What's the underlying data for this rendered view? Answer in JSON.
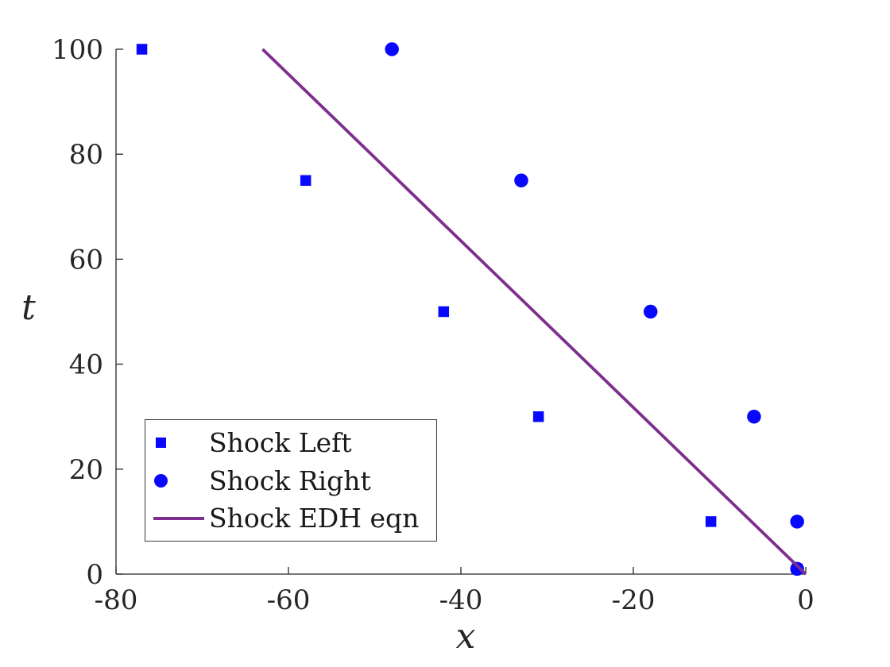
{
  "figure": {
    "background": "#ffffff",
    "axis_color": "#262626",
    "text_color": "#1a1a1a"
  },
  "chart_data": {
    "type": "scatter",
    "title": "",
    "xlabel": "x",
    "ylabel": "t",
    "xlim": [
      -80,
      0
    ],
    "ylim": [
      0,
      100
    ],
    "xticks": [
      "-80",
      "-60",
      "-40",
      "-20",
      "0"
    ],
    "xtick_values": [
      -80,
      -60,
      -40,
      -20,
      0
    ],
    "yticks": [
      "0",
      "20",
      "40",
      "60",
      "80",
      "100"
    ],
    "ytick_values": [
      0,
      20,
      40,
      60,
      80,
      100
    ],
    "grid": false,
    "legend_position": "lower-left",
    "series": [
      {
        "name": "Shock Left",
        "type": "scatter",
        "marker": "square",
        "color": "#0808ff",
        "points": [
          [
            -77,
            100
          ],
          [
            -58,
            75
          ],
          [
            -42,
            50
          ],
          [
            -31,
            30
          ],
          [
            -11,
            10
          ],
          [
            -1,
            1
          ]
        ]
      },
      {
        "name": "Shock Right",
        "type": "scatter",
        "marker": "circle",
        "color": "#0808ff",
        "points": [
          [
            -48,
            100
          ],
          [
            -33,
            75
          ],
          [
            -18,
            50
          ],
          [
            -6,
            30
          ],
          [
            -1,
            10
          ],
          [
            -1,
            1
          ]
        ]
      },
      {
        "name": "Shock EDH eqn",
        "type": "line",
        "marker": "line",
        "color": "#7e2f8e",
        "points": [
          [
            -63,
            100
          ],
          [
            0,
            0
          ]
        ]
      }
    ]
  }
}
